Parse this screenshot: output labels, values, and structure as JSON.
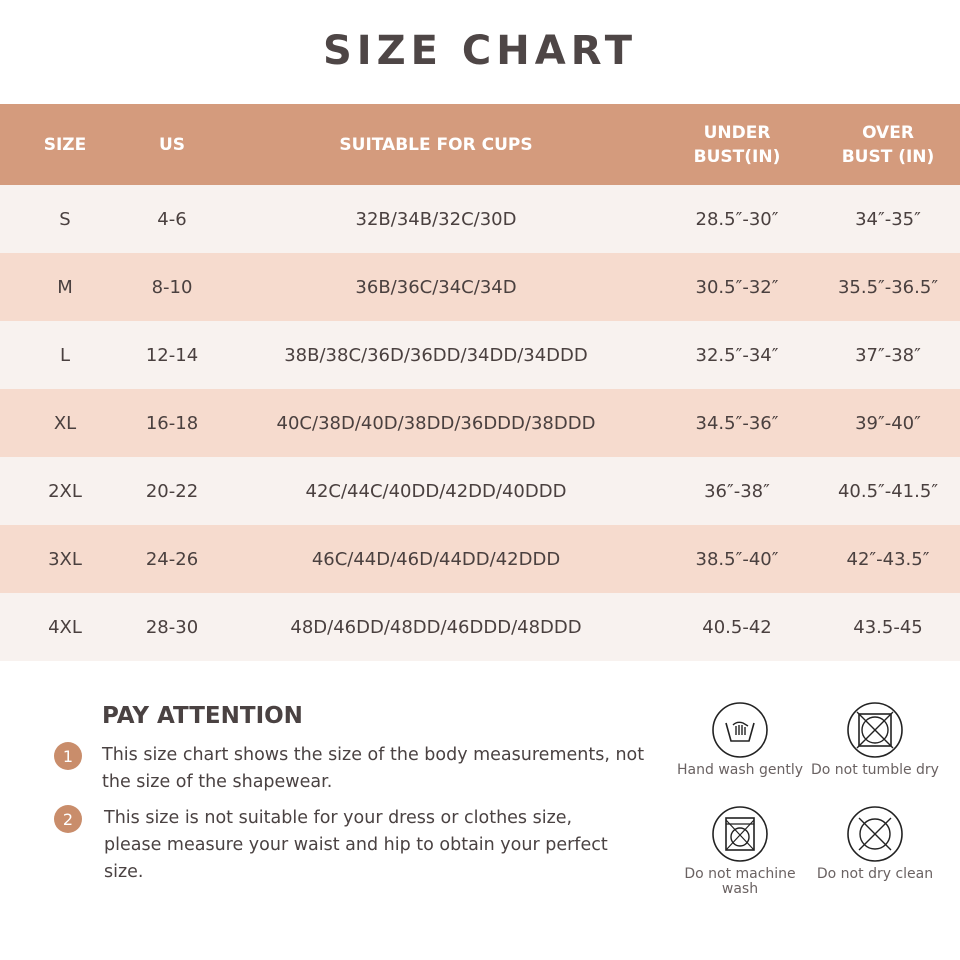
{
  "title": "SIZE CHART",
  "table": {
    "headers": [
      "SIZE",
      "US",
      "SUITABLE FOR CUPS",
      "UNDER BUST(IN)",
      "OVER BUST (IN)"
    ],
    "rows": [
      [
        "S",
        "4-6",
        "32B/34B/32C/30D",
        "28.5″-30″",
        "34″-35″"
      ],
      [
        "M",
        "8-10",
        "36B/36C/34C/34D",
        "30.5″-32″",
        "35.5″-36.5″"
      ],
      [
        "L",
        "12-14",
        "38B/38C/36D/36DD/34DD/34DDD",
        "32.5″-34″",
        "37″-38″"
      ],
      [
        "XL",
        "16-18",
        "40C/38D/40D/38DD/36DDD/38DDD",
        "34.5″-36″",
        "39″-40″"
      ],
      [
        "2XL",
        "20-22",
        "42C/44C/40DD/42DD/40DDD",
        "36″-38″",
        "40.5″-41.5″"
      ],
      [
        "3XL",
        "24-26",
        "46C/44D/46D/44DD/42DDD",
        "38.5″-40″",
        "42″-43.5″"
      ],
      [
        "4XL",
        "28-30",
        "48D/46DD/48DD/46DDD/48DDD",
        "40.5-42",
        "43.5-45"
      ]
    ]
  },
  "attention": {
    "title": "PAY ATTENTION",
    "notes": [
      {
        "num": "1",
        "text": "This size chart shows the size of the body measurements, not the size of the shapewear."
      },
      {
        "num": "2",
        "text": "This size is not suitable for your dress or clothes size, please measure your waist and hip to obtain your perfect size."
      }
    ]
  },
  "care": [
    {
      "icon": "hand-wash-icon",
      "label": "Hand wash gently"
    },
    {
      "icon": "no-tumble-dry-icon",
      "label": "Do not tumble dry"
    },
    {
      "icon": "no-machine-wash-icon",
      "label": "Do not machine wash"
    },
    {
      "icon": "no-dry-clean-icon",
      "label": "Do not dry clean"
    }
  ],
  "colors": {
    "header": "#d49b7d",
    "row_light": "#f8f2ef",
    "row_pink": "#f6dbce",
    "accent": "#c98d6b"
  }
}
